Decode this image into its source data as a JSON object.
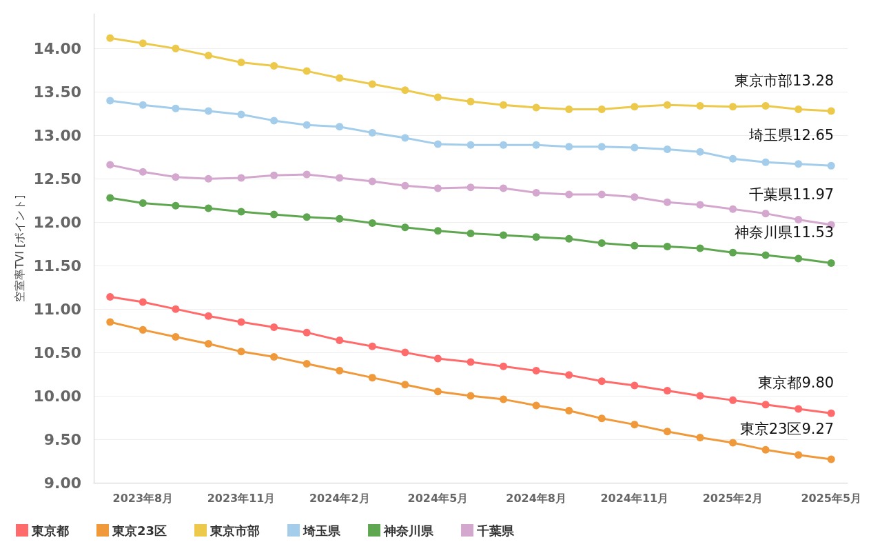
{
  "chart_data": {
    "type": "line",
    "ylabel": "空室率TVI [ポイント]",
    "categories": [
      null,
      "2023年8月",
      null,
      null,
      "2023年11月",
      null,
      null,
      "2024年2月",
      null,
      null,
      "2024年5月",
      null,
      null,
      "2024年8月",
      null,
      null,
      "2024年11月",
      null,
      null,
      "2025年2月",
      null,
      null,
      "2025年5月"
    ],
    "series": [
      {
        "name": "東京都",
        "color": "#ff6b6b",
        "values": [
          11.14,
          11.08,
          11.0,
          10.92,
          10.85,
          10.79,
          10.73,
          10.64,
          10.57,
          10.5,
          10.43,
          10.39,
          10.34,
          10.29,
          10.24,
          10.17,
          10.12,
          10.06,
          10.0,
          9.95,
          9.9,
          9.85,
          9.8
        ]
      },
      {
        "name": "東京23区",
        "color": "#f0993a",
        "values": [
          10.85,
          10.76,
          10.68,
          10.6,
          10.51,
          10.45,
          10.37,
          10.29,
          10.21,
          10.13,
          10.05,
          10.0,
          9.96,
          9.89,
          9.83,
          9.74,
          9.67,
          9.59,
          9.52,
          9.46,
          9.38,
          9.32,
          9.27
        ]
      },
      {
        "name": "東京市部",
        "color": "#ecc94b",
        "values": [
          14.12,
          14.06,
          14.0,
          13.92,
          13.84,
          13.8,
          13.74,
          13.66,
          13.59,
          13.52,
          13.44,
          13.39,
          13.35,
          13.32,
          13.3,
          13.3,
          13.33,
          13.35,
          13.34,
          13.33,
          13.34,
          13.3,
          13.28
        ]
      },
      {
        "name": "埼玉県",
        "color": "#a3cdea",
        "values": [
          13.4,
          13.35,
          13.31,
          13.28,
          13.24,
          13.17,
          13.12,
          13.1,
          13.03,
          12.97,
          12.9,
          12.89,
          12.89,
          12.89,
          12.87,
          12.87,
          12.86,
          12.84,
          12.81,
          12.73,
          12.69,
          12.67,
          12.65
        ]
      },
      {
        "name": "神奈川県",
        "color": "#5ea64f",
        "values": [
          12.28,
          12.22,
          12.19,
          12.16,
          12.12,
          12.09,
          12.06,
          12.04,
          11.99,
          11.94,
          11.9,
          11.87,
          11.85,
          11.83,
          11.81,
          11.76,
          11.73,
          11.72,
          11.7,
          11.65,
          11.62,
          11.58,
          11.53
        ]
      },
      {
        "name": "千葉県",
        "color": "#d4a7cf",
        "values": [
          12.66,
          12.58,
          12.52,
          12.5,
          12.51,
          12.54,
          12.55,
          12.51,
          12.47,
          12.42,
          12.39,
          12.4,
          12.39,
          12.34,
          12.32,
          12.32,
          12.29,
          12.23,
          12.2,
          12.15,
          12.1,
          12.03,
          11.97
        ]
      }
    ],
    "annotations": [
      {
        "text": "東京市部13.28",
        "x": "2025年5月",
        "y": 13.28
      },
      {
        "text": "埼玉県12.65",
        "x": "2025年5月",
        "y": 12.65
      },
      {
        "text": "千葉県11.97",
        "x": "2025年5月",
        "y": 11.97
      },
      {
        "text": "神奈川県11.53",
        "x": "2025年5月",
        "y": 11.53
      },
      {
        "text": "東京都9.80",
        "x": "2025年5月",
        "y": 9.8
      },
      {
        "text": "東京23区9.27",
        "x": "2025年5月",
        "y": 9.27
      }
    ],
    "ylim": [
      9,
      14.4
    ],
    "yticks": [
      {
        "value": 9,
        "label": "9.00"
      },
      {
        "value": 9.5,
        "label": "9.50"
      },
      {
        "value": 10,
        "label": "10.00"
      },
      {
        "value": 10.5,
        "label": "10.50"
      },
      {
        "value": 11,
        "label": "11.00"
      },
      {
        "value": 11.5,
        "label": "11.50"
      },
      {
        "value": 12,
        "label": "12.00"
      },
      {
        "value": 12.5,
        "label": "12.50"
      },
      {
        "value": 13,
        "label": "13.00"
      },
      {
        "value": 13.5,
        "label": "13.50"
      },
      {
        "value": 14,
        "label": "14.00"
      }
    ],
    "grid": "y",
    "legend": "bottom left",
    "marker": "circle",
    "line_style": "solid"
  }
}
